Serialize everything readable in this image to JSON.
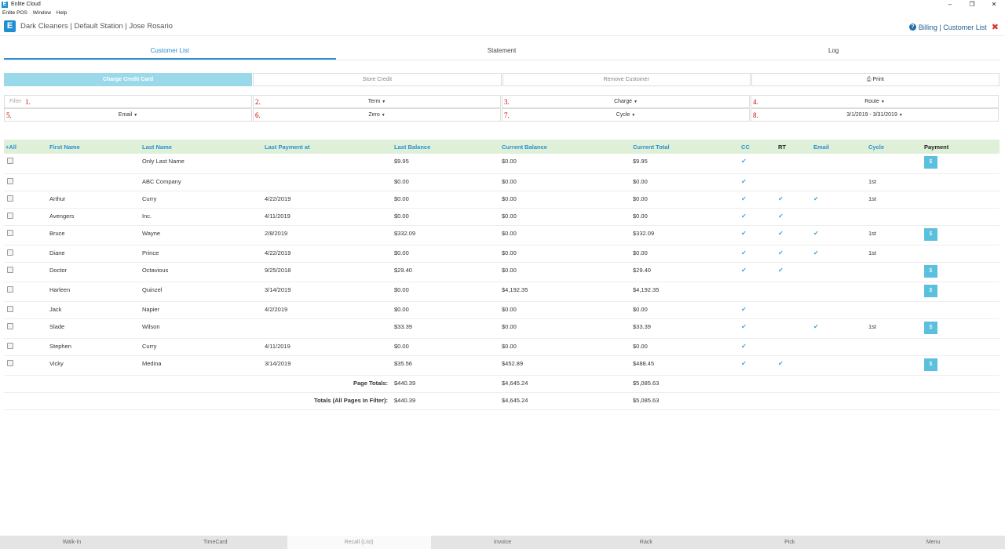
{
  "window": {
    "title": "Enlite Cloud",
    "menu": [
      "Enlite POS",
      "Window",
      "Help"
    ]
  },
  "header": {
    "logo_letter": "E",
    "title": "Dark Cleaners | Default Station | Jose Rosario",
    "breadcrumb": "Billing | Customer List"
  },
  "tabs": [
    "Customer List",
    "Statement",
    "Log"
  ],
  "actions": {
    "charge": "Charge Credit Card",
    "store_credit": "Store Credit",
    "remove": "Remove Customer",
    "print": "Print"
  },
  "filters": {
    "row1": [
      {
        "num": "1.",
        "placeholder": "Filter",
        "label": ""
      },
      {
        "num": "2.",
        "label": "Term"
      },
      {
        "num": "3.",
        "label": "Charge"
      },
      {
        "num": "4.",
        "label": "Route"
      }
    ],
    "row2": [
      {
        "num": "5.",
        "label": "Email"
      },
      {
        "num": "6.",
        "label": "Zero"
      },
      {
        "num": "7.",
        "label": "Cycle"
      },
      {
        "num": "8.",
        "label": "3/1/2019 - 3/31/2019"
      }
    ]
  },
  "table": {
    "headers": [
      "+All",
      "First Name",
      "Last Name",
      "Last Payment at",
      "Last Balance",
      "Current Balance",
      "Current Total",
      "CC",
      "RT",
      "Email",
      "Cycle",
      "Payment"
    ],
    "rows": [
      {
        "first": "",
        "last": "Only Last Name",
        "paid": "",
        "lb": "$9.95",
        "cb": "$0.00",
        "ct": "$9.95",
        "cc": true,
        "rt": false,
        "email": false,
        "cycle": "",
        "pay": true
      },
      {
        "first": "",
        "last": "ABC Company",
        "paid": "",
        "lb": "$0.00",
        "cb": "$0.00",
        "ct": "$0.00",
        "cc": true,
        "rt": false,
        "email": false,
        "cycle": "1st",
        "pay": false
      },
      {
        "first": "Arthur",
        "last": "Curry",
        "paid": "4/22/2019",
        "lb": "$0.00",
        "cb": "$0.00",
        "ct": "$0.00",
        "cc": true,
        "rt": true,
        "email": true,
        "cycle": "1st",
        "pay": false
      },
      {
        "first": "Avengers",
        "last": "Inc.",
        "paid": "4/11/2019",
        "lb": "$0.00",
        "cb": "$0.00",
        "ct": "$0.00",
        "cc": true,
        "rt": true,
        "email": false,
        "cycle": "",
        "pay": false
      },
      {
        "first": "Bruce",
        "last": "Wayne",
        "paid": "2/8/2019",
        "lb": "$332.09",
        "cb": "$0.00",
        "ct": "$332.09",
        "cc": true,
        "rt": true,
        "email": true,
        "cycle": "1st",
        "pay": true
      },
      {
        "first": "Diane",
        "last": "Prince",
        "paid": "4/22/2019",
        "lb": "$0.00",
        "cb": "$0.00",
        "ct": "$0.00",
        "cc": true,
        "rt": true,
        "email": true,
        "cycle": "1st",
        "pay": false
      },
      {
        "first": "Doctor",
        "last": "Octavious",
        "paid": "9/25/2018",
        "lb": "$29.40",
        "cb": "$0.00",
        "ct": "$29.40",
        "cc": true,
        "rt": true,
        "email": false,
        "cycle": "",
        "pay": true
      },
      {
        "first": "Harleen",
        "last": "Quinzel",
        "paid": "3/14/2019",
        "lb": "$0.00",
        "cb": "$4,192.35",
        "ct": "$4,192.35",
        "cc": false,
        "rt": false,
        "email": false,
        "cycle": "",
        "pay": true
      },
      {
        "first": "Jack",
        "last": "Napier",
        "paid": "4/2/2019",
        "lb": "$0.00",
        "cb": "$0.00",
        "ct": "$0.00",
        "cc": true,
        "rt": false,
        "email": false,
        "cycle": "",
        "pay": false
      },
      {
        "first": "Slade",
        "last": "Wilson",
        "paid": "",
        "lb": "$33.39",
        "cb": "$0.00",
        "ct": "$33.39",
        "cc": true,
        "rt": false,
        "email": true,
        "cycle": "1st",
        "pay": true
      },
      {
        "first": "Stephen",
        "last": "Curry",
        "paid": "4/11/2019",
        "lb": "$0.00",
        "cb": "$0.00",
        "ct": "$0.00",
        "cc": true,
        "rt": false,
        "email": false,
        "cycle": "",
        "pay": false
      },
      {
        "first": "Vicky",
        "last": "Medina",
        "paid": "3/14/2019",
        "lb": "$35.56",
        "cb": "$452.89",
        "ct": "$488.45",
        "cc": true,
        "rt": true,
        "email": false,
        "cycle": "",
        "pay": true
      }
    ],
    "pay_label": "$",
    "tick": "✔",
    "totals": [
      {
        "label": "Page Totals:",
        "lb": "$440.39",
        "cb": "$4,645.24",
        "ct": "$5,085.63"
      },
      {
        "label": "Totals (All Pages In Filter):",
        "lb": "$440.39",
        "cb": "$4,645.24",
        "ct": "$5,085.63"
      }
    ]
  },
  "bottom_nav": [
    "Walk-In",
    "TimeCard",
    "Recall (List)",
    "Invoice",
    "Rack",
    "Pick",
    "Menu"
  ],
  "bottom_nav_active": 2
}
